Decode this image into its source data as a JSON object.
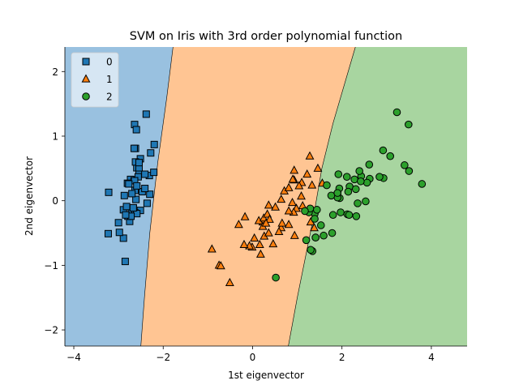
{
  "chart_data": {
    "type": "scatter",
    "title": "SVM on Iris with 3rd order polynomial function",
    "xlabel": "1st eigenvector",
    "ylabel": "2nd eigenvector",
    "xlim": [
      -4.2,
      4.8
    ],
    "ylim": [
      -2.25,
      2.38
    ],
    "xticks": [
      -4,
      -2,
      0,
      2,
      4
    ],
    "yticks": [
      -2,
      -1,
      0,
      1,
      2
    ],
    "grid": false,
    "legend_position": "top-left",
    "colors": {
      "region_0": "#99c1e0",
      "region_1": "#ffc593",
      "region_2": "#a8d5a0",
      "marker_0": "#1f77b4",
      "marker_1": "#ff7f0e",
      "marker_2": "#2ca02c"
    },
    "decision_boundaries": [
      {
        "between": [
          "0",
          "1"
        ],
        "points": [
          [
            -2.5,
            -2.25
          ],
          [
            -2.42,
            -1.5
          ],
          [
            -2.3,
            -0.5
          ],
          [
            -2.12,
            0.6
          ],
          [
            -1.92,
            1.6
          ],
          [
            -1.78,
            2.38
          ]
        ]
      },
      {
        "between": [
          "1",
          "2"
        ],
        "points": [
          [
            0.8,
            -2.25
          ],
          [
            1.0,
            -1.5
          ],
          [
            1.35,
            -0.3
          ],
          [
            1.55,
            0.5
          ],
          [
            1.8,
            1.2
          ],
          [
            2.3,
            2.38
          ]
        ]
      }
    ],
    "series": [
      {
        "name": "0",
        "marker": "square",
        "points": [
          [
            -2.68,
            0.32
          ],
          [
            -2.71,
            -0.18
          ],
          [
            -2.89,
            -0.14
          ],
          [
            -2.75,
            -0.32
          ],
          [
            -2.73,
            0.33
          ],
          [
            -2.28,
            0.74
          ],
          [
            -2.82,
            -0.09
          ],
          [
            -2.63,
            0.16
          ],
          [
            -2.89,
            -0.58
          ],
          [
            -2.67,
            -0.11
          ],
          [
            -2.51,
            0.65
          ],
          [
            -2.61,
            0.02
          ],
          [
            -2.79,
            -0.24
          ],
          [
            -3.23,
            -0.51
          ],
          [
            -2.64,
            1.18
          ],
          [
            -2.38,
            1.34
          ],
          [
            -2.62,
            0.81
          ],
          [
            -2.65,
            0.31
          ],
          [
            -2.2,
            0.87
          ],
          [
            -2.59,
            0.51
          ],
          [
            -2.31,
            0.39
          ],
          [
            -2.54,
            0.43
          ],
          [
            -3.22,
            0.13
          ],
          [
            -2.3,
            0.1
          ],
          [
            -2.36,
            -0.04
          ],
          [
            -2.51,
            -0.15
          ],
          [
            -2.47,
            0.14
          ],
          [
            -2.56,
            0.37
          ],
          [
            -2.64,
            0.31
          ],
          [
            -2.63,
            -0.19
          ],
          [
            -2.59,
            -0.2
          ],
          [
            -2.41,
            0.41
          ],
          [
            -2.65,
            0.81
          ],
          [
            -2.6,
            1.1
          ],
          [
            -2.67,
            -0.11
          ],
          [
            -2.87,
            0.08
          ],
          [
            -2.62,
            0.6
          ],
          [
            -2.8,
            0.27
          ],
          [
            -2.98,
            -0.49
          ],
          [
            -2.59,
            0.23
          ],
          [
            -2.77,
            0.26
          ],
          [
            -2.85,
            -0.94
          ],
          [
            -3.0,
            -0.34
          ],
          [
            -2.41,
            0.19
          ],
          [
            -2.21,
            0.44
          ],
          [
            -2.72,
            -0.24
          ],
          [
            -2.54,
            0.51
          ],
          [
            -2.84,
            -0.22
          ],
          [
            -2.54,
            0.59
          ],
          [
            -2.7,
            0.11
          ]
        ]
      },
      {
        "name": "1",
        "marker": "triangle",
        "points": [
          [
            1.28,
            0.69
          ],
          [
            0.93,
            0.32
          ],
          [
            1.46,
            0.5
          ],
          [
            0.18,
            -0.83
          ],
          [
            1.09,
            0.07
          ],
          [
            0.64,
            -0.42
          ],
          [
            1.1,
            0.28
          ],
          [
            -0.75,
            -1.0
          ],
          [
            1.04,
            0.23
          ],
          [
            -0.01,
            -0.72
          ],
          [
            -0.51,
            -1.27
          ],
          [
            0.51,
            -0.1
          ],
          [
            0.26,
            -0.55
          ],
          [
            0.98,
            -0.12
          ],
          [
            -0.17,
            -0.25
          ],
          [
            0.93,
            0.47
          ],
          [
            0.66,
            -0.35
          ],
          [
            0.23,
            -0.33
          ],
          [
            0.94,
            -0.54
          ],
          [
            0.04,
            -0.58
          ],
          [
            1.12,
            -0.08
          ],
          [
            0.36,
            -0.07
          ],
          [
            1.3,
            -0.33
          ],
          [
            0.92,
            -0.18
          ],
          [
            0.71,
            0.15
          ],
          [
            0.9,
            0.33
          ],
          [
            1.33,
            0.24
          ],
          [
            1.56,
            0.27
          ],
          [
            0.81,
            -0.16
          ],
          [
            -0.31,
            -0.37
          ],
          [
            -0.07,
            -0.7
          ],
          [
            -0.19,
            -0.68
          ],
          [
            0.14,
            -0.31
          ],
          [
            1.38,
            -0.42
          ],
          [
            0.59,
            -0.48
          ],
          [
            0.81,
            0.2
          ],
          [
            1.22,
            0.41
          ],
          [
            0.81,
            -0.37
          ],
          [
            0.25,
            -0.27
          ],
          [
            0.16,
            -0.68
          ],
          [
            0.46,
            -0.67
          ],
          [
            0.89,
            -0.03
          ],
          [
            0.23,
            -0.4
          ],
          [
            -0.71,
            -1.01
          ],
          [
            0.36,
            -0.5
          ],
          [
            0.33,
            -0.21
          ],
          [
            0.38,
            -0.29
          ],
          [
            0.64,
            0.02
          ],
          [
            -0.91,
            -0.75
          ],
          [
            0.3,
            -0.35
          ]
        ]
      },
      {
        "name": "2",
        "marker": "circle",
        "points": [
          [
            2.53,
            -0.01
          ],
          [
            1.41,
            -0.57
          ],
          [
            2.62,
            0.34
          ],
          [
            1.97,
            -0.18
          ],
          [
            2.35,
            -0.04
          ],
          [
            3.4,
            0.55
          ],
          [
            0.52,
            -1.19
          ],
          [
            2.93,
            0.35
          ],
          [
            2.32,
            -0.24
          ],
          [
            2.92,
            0.78
          ],
          [
            1.66,
            0.24
          ],
          [
            1.8,
            -0.22
          ],
          [
            2.17,
            0.22
          ],
          [
            1.34,
            -0.78
          ],
          [
            1.59,
            -0.54
          ],
          [
            1.9,
            0.12
          ],
          [
            1.95,
            0.04
          ],
          [
            3.49,
            1.18
          ],
          [
            3.79,
            0.26
          ],
          [
            1.3,
            -0.76
          ],
          [
            2.43,
            0.38
          ],
          [
            1.2,
            -0.61
          ],
          [
            3.5,
            0.46
          ],
          [
            1.39,
            -0.2
          ],
          [
            2.28,
            0.33
          ],
          [
            2.61,
            0.56
          ],
          [
            1.26,
            -0.18
          ],
          [
            1.29,
            -0.12
          ],
          [
            2.12,
            -0.21
          ],
          [
            2.39,
            0.46
          ],
          [
            2.84,
            0.37
          ],
          [
            3.23,
            1.37
          ],
          [
            2.16,
            -0.22
          ],
          [
            1.44,
            -0.14
          ],
          [
            1.78,
            -0.5
          ],
          [
            3.08,
            0.69
          ],
          [
            2.14,
            0.14
          ],
          [
            1.9,
            0.05
          ],
          [
            1.17,
            -0.16
          ],
          [
            2.11,
            0.37
          ],
          [
            2.31,
            0.18
          ],
          [
            1.92,
            0.41
          ],
          [
            1.41,
            -0.57
          ],
          [
            2.56,
            0.28
          ],
          [
            2.42,
            0.3
          ],
          [
            1.94,
            0.19
          ],
          [
            1.53,
            -0.38
          ],
          [
            1.76,
            0.08
          ],
          [
            1.9,
            0.12
          ],
          [
            1.39,
            -0.28
          ]
        ]
      }
    ]
  }
}
